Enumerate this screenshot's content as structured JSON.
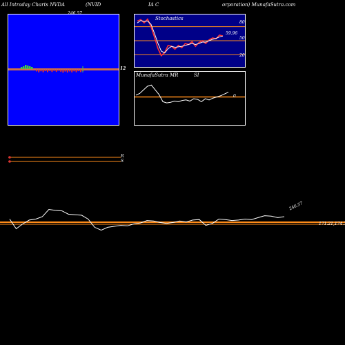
{
  "header": {
    "left": "All Intraday Charts NVDA",
    "mid1": "(NVID",
    "mid2": "IA C",
    "right": "orporation) MunafaSutra.com"
  },
  "price_panel": {
    "top_label": "246.57",
    "right_label": "12",
    "colors": {
      "background": "#0000ff",
      "line": "#ff8c1a",
      "up_bars": "#44cc44",
      "down_bars": "#dd3333"
    }
  },
  "stochastics": {
    "title": "Stochastics",
    "last_value_label": "59.96",
    "levels": [
      "80",
      "50",
      "20"
    ]
  },
  "mrsi": {
    "title": "MunafaSutra MR",
    "title_extra": "SI",
    "level": "0"
  },
  "rs_legend": {
    "r_label": "R",
    "s_label": "S"
  },
  "main_chart": {
    "price_label": "246.57",
    "right_labels": "171.21,174.74,72"
  },
  "chart_data": [
    {
      "type": "line",
      "title": "Stochastics",
      "ylim": [
        0,
        100
      ],
      "levels": [
        80,
        50,
        20
      ],
      "series": [
        {
          "values": [
            92,
            95,
            88,
            96,
            80,
            58,
            34,
            18,
            25,
            40,
            38,
            32,
            40,
            35,
            44,
            42,
            48,
            38,
            46,
            50,
            44,
            52,
            56,
            54,
            62,
            60
          ]
        },
        {
          "values": [
            88,
            93,
            91,
            92,
            85,
            66,
            45,
            28,
            24,
            33,
            38,
            36,
            37,
            38,
            40,
            42,
            44,
            42,
            44,
            47,
            47,
            50,
            53,
            55,
            58,
            60
          ]
        }
      ]
    },
    {
      "type": "line",
      "title": "MunafaSutra MR SI",
      "ylim": [
        -40,
        40
      ],
      "levels": [
        0
      ],
      "series": [
        {
          "values": [
            3,
            6,
            12,
            18,
            20,
            12,
            4,
            -8,
            -10,
            -9,
            -7,
            -8,
            -6,
            -5,
            -7,
            -3,
            -4,
            -8,
            -3,
            -5,
            -2,
            0,
            2,
            5,
            8
          ]
        }
      ]
    },
    {
      "type": "line",
      "title": "",
      "series": [
        {
          "values": [
            0.5,
            -1.5,
            -0.5,
            0.3,
            0.5,
            1,
            2.5,
            2.3,
            2.2,
            1.5,
            1.4,
            1.3,
            0.5,
            -1.2,
            -1.8,
            -1.2,
            -1,
            -0.8,
            -0.9,
            -0.5,
            -0.3,
            0.2,
            0.1,
            -0.2,
            -0.4,
            -0.2,
            0.1,
            -0.1,
            0.3,
            0.4,
            -0.8,
            -0.4,
            0.5,
            0.4,
            0.2,
            0.3,
            0.5,
            0.4,
            0.8,
            1.2,
            1.1,
            0.8,
            1
          ]
        }
      ],
      "level": 0
    }
  ]
}
